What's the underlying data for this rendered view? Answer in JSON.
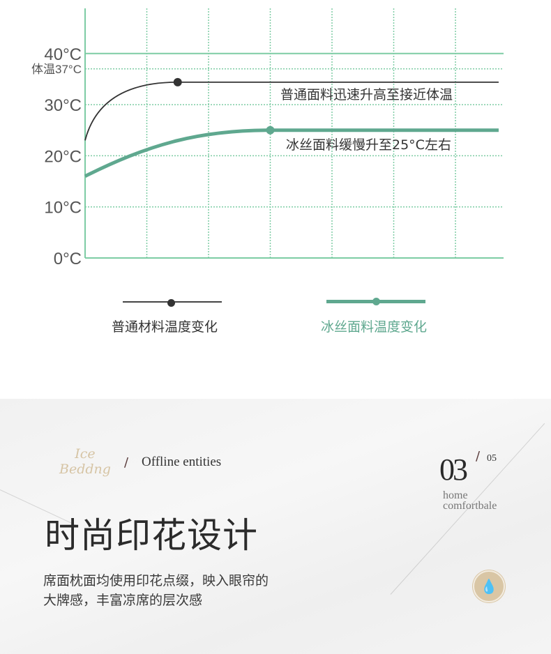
{
  "chart_data": {
    "type": "line",
    "title": "",
    "xlabel": "",
    "ylabel": "",
    "ylim": [
      0,
      48
    ],
    "y_ticks": [
      "0°C",
      "10°C",
      "20°C",
      "30°C",
      "体温37°C",
      "40°C"
    ],
    "y_tick_values": [
      0,
      10,
      20,
      30,
      37,
      40
    ],
    "x_range": [
      0,
      6.8
    ],
    "x_gridlines": [
      1,
      2,
      3,
      4,
      5,
      6
    ],
    "grid": true,
    "legend": "bottom",
    "series": [
      {
        "name": "普通材料温度变化",
        "color": "#333333",
        "x": [
          0,
          0.3,
          0.7,
          1.0,
          1.5,
          6.7
        ],
        "values": [
          23,
          29,
          32.5,
          34,
          34.4,
          34.4
        ],
        "marker_x": 1.5,
        "marker_value": 34.4,
        "annotation": "普通面料迅速升高至接近体温"
      },
      {
        "name": "冰丝面料温度变化",
        "color": "#5fa88f",
        "x": [
          0,
          0.5,
          1.0,
          1.5,
          2.0,
          3.0,
          6.7
        ],
        "values": [
          16,
          19,
          21.2,
          22.8,
          23.8,
          25,
          25
        ],
        "marker_x": 3.0,
        "marker_value": 25,
        "annotation": "冰丝面料缓慢升至25°C左右"
      }
    ]
  },
  "colors": {
    "grid": "#7dcca4",
    "accent_gold": "#d6c4a4"
  },
  "section": {
    "brand_line1": "Ice",
    "brand_line2": "Beddng",
    "slash": "/",
    "subtitle": "Offline entities",
    "page_num": "03",
    "page_total": "05",
    "tag_line1": "home",
    "tag_line2": "comfortbale",
    "title": "时尚印花设计",
    "desc_line1": "席面枕面均使用印花点缀，映入眼帘的",
    "desc_line2": "大牌感，丰富凉席的层次感",
    "badge_icon": "water-drop-icon"
  }
}
